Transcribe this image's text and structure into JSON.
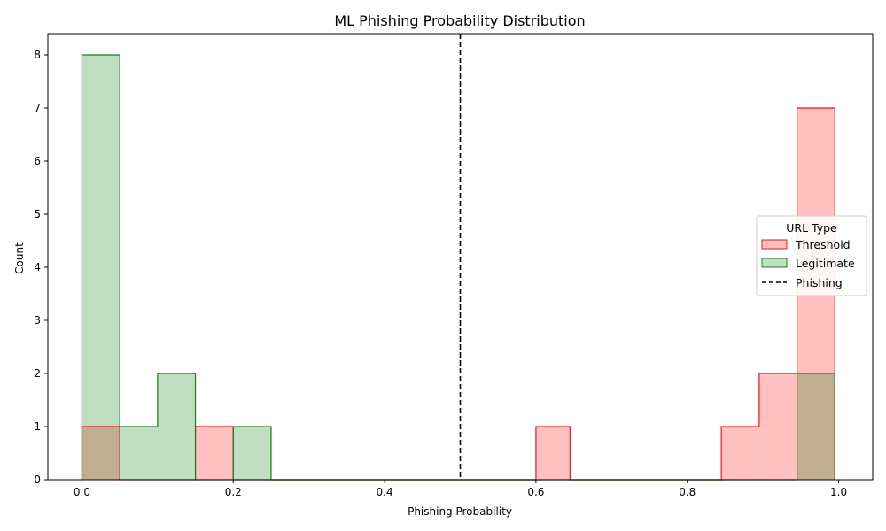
{
  "chart_data": {
    "type": "histogram",
    "title": "ML Phishing Probability Distribution",
    "xlabel": "Phishing Probability",
    "ylabel": "Count",
    "xlim": [
      -0.045,
      1.045
    ],
    "ylim": [
      0,
      8.4
    ],
    "xticks": [
      0.0,
      0.2,
      0.4,
      0.6,
      0.8,
      1.0
    ],
    "xtick_labels": [
      "0.0",
      "0.2",
      "0.4",
      "0.6",
      "0.8",
      "1.0"
    ],
    "yticks": [
      0,
      1,
      2,
      3,
      4,
      5,
      6,
      7,
      8
    ],
    "ytick_labels": [
      "0",
      "1",
      "2",
      "3",
      "4",
      "5",
      "6",
      "7",
      "8"
    ],
    "grid": false,
    "bin_edges": [
      0.0,
      0.05,
      0.1,
      0.15,
      0.2,
      0.25,
      0.3,
      0.35,
      0.4,
      0.45,
      0.5,
      0.55,
      0.6,
      0.645,
      0.695,
      0.745,
      0.795,
      0.845,
      0.895,
      0.945,
      0.995
    ],
    "series": [
      {
        "name": "Threshold",
        "style": "step-filled",
        "edge_color": "#e31a1c",
        "fill_color": "#ffc0c0",
        "counts": [
          1,
          0,
          0,
          1,
          0,
          0,
          0,
          0,
          0,
          0,
          0,
          0,
          1,
          0,
          0,
          0,
          0,
          1,
          2,
          7
        ]
      },
      {
        "name": "Legitimate",
        "style": "step-filled",
        "edge_color": "#1a7f1a",
        "fill_color": "#c0dfc0",
        "counts": [
          8,
          1,
          2,
          0,
          1,
          0,
          0,
          0,
          0,
          0,
          0,
          0,
          0,
          0,
          0,
          0,
          0,
          0,
          0,
          2
        ]
      }
    ],
    "vlines": [
      {
        "name": "Phishing",
        "x": 0.5,
        "color": "#000000",
        "linestyle": "dashed"
      }
    ],
    "overlap_fill_color": "#bfae90",
    "legend": {
      "title": "URL Type",
      "placement": "center-right",
      "entries": [
        "Threshold",
        "Legitimate",
        "Phishing"
      ]
    }
  }
}
